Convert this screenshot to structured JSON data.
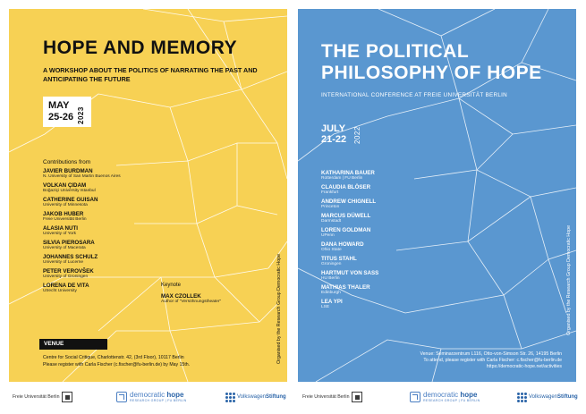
{
  "left_poster": {
    "title": "HOPE AND MEMORY",
    "subtitle": "A WORKSHOP ABOUT THE POLITICS OF NARRATING THE PAST AND ANTICIPATING THE FUTURE",
    "date_month": "MAY",
    "date_days": "25-26",
    "year": "2023",
    "contributions_label": "Contributions from",
    "participants": [
      {
        "name": "JAVIER BURDMAN",
        "affiliation": "N. University of San Martin Buenos Aires"
      },
      {
        "name": "VOLKAN ÇIDAM",
        "affiliation": "Boğaziçi University Istanbul"
      },
      {
        "name": "CATHERINE GUISAN",
        "affiliation": "University of Minnesota"
      },
      {
        "name": "JAKOB HUBER",
        "affiliation": "Freie Universität Berlin"
      },
      {
        "name": "ALASIA NUTI",
        "affiliation": "University of York"
      },
      {
        "name": "SILVIA PIEROSARA",
        "affiliation": "University of Macerata"
      },
      {
        "name": "JOHANNES SCHULZ",
        "affiliation": "University of Lucerne"
      },
      {
        "name": "PETER VEROVŠEK",
        "affiliation": "University of Groningen"
      },
      {
        "name": "LORENA DE VITA",
        "affiliation": "Utrecht University"
      }
    ],
    "keynote_label": "Keynote",
    "keynote": {
      "name": "MAX CZOLLEK",
      "affiliation": "Author of \"Versöhnungstheater\""
    },
    "venue_label": "VENUE",
    "venue_line1": "Centre for Social Critique, Charlottenstr. 42, (3rd Floor), 10117 Berlin",
    "venue_line2": "Please register with Carla Fischer (c.fischer@fu-berlin.de) by May 15th.",
    "organizer": "Organised by the Research Group Democratic Hope",
    "colors": {
      "background": "#f7d154",
      "lines": "#ffffff"
    }
  },
  "right_poster": {
    "title_line1": "THE POLITICAL",
    "title_line2": "PHILOSOPHY OF HOPE",
    "subtitle": "INTERNATIONAL CONFERENCE  AT FREIE UNIVERSITÄT BERLIN",
    "date_month": "JULY",
    "date_days": "21-22",
    "year": "2022",
    "speakers": [
      {
        "name": "KATHARINA BAUER",
        "affiliation": "Rotterdam | FU Berlin"
      },
      {
        "name": "CLAUDIA BLÖSER",
        "affiliation": "Frankfurt"
      },
      {
        "name": "ANDREW CHIGNELL",
        "affiliation": "Princeton"
      },
      {
        "name": "MARCUS DÜWELL",
        "affiliation": "Darmstadt"
      },
      {
        "name": "LOREN GOLDMAN",
        "affiliation": "UPenn"
      },
      {
        "name": "DANA HOWARD",
        "affiliation": "Ohio State"
      },
      {
        "name": "TITUS STAHL",
        "affiliation": "Groningen"
      },
      {
        "name": "HARTMUT VON SASS",
        "affiliation": "HU Berlin"
      },
      {
        "name": "MATHIAS THALER",
        "affiliation": "Edinburgh"
      },
      {
        "name": "LEA YPI",
        "affiliation": "LSE"
      }
    ],
    "venue_line1": "Venue: Seminarzentrum L116, Otto-von-Simson Str. 26, 14195 Berlin",
    "venue_line2": "To attend, please register with Carla Fischer: c.fischer@fu-berlin.de",
    "venue_line3": "https://democratic-hope.net/activities",
    "organizer": "Organised by the Research Group Democratic Hope",
    "colors": {
      "background": "#5a97d0",
      "lines": "#ffffff"
    }
  },
  "footer": {
    "fu_logo": "Freie Universität Berlin",
    "dh_logo_a": "democratic",
    "dh_logo_b": "hope",
    "dh_sub": "RESEARCH GROUP | FU BERLIN",
    "vw_a": "Volkswagen",
    "vw_b": "Stiftung",
    "icons": [
      "fu-seal-icon",
      "democratic-hope-icon",
      "volkswagen-stiftung-icon"
    ]
  }
}
